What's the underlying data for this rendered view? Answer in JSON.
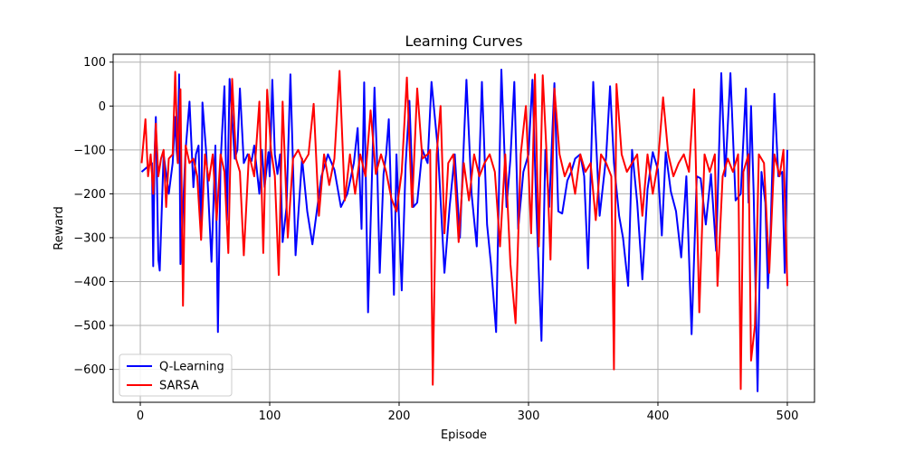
{
  "chart_data": {
    "type": "line",
    "title": "Learning Curves",
    "xlabel": "Episode",
    "ylabel": "Reward",
    "xlim": [
      -21,
      521
    ],
    "ylim": [
      -675,
      118
    ],
    "x_ticks": [
      0,
      100,
      200,
      300,
      400,
      500
    ],
    "y_ticks": [
      100,
      0,
      -100,
      -200,
      -300,
      -400,
      -500,
      -600
    ],
    "grid": true,
    "legend": "lower-left",
    "series": [
      {
        "name": "Q-Learning",
        "color": "#0000ff",
        "x": [
          1,
          9,
          10,
          11,
          12,
          14,
          15,
          18,
          22,
          25,
          27,
          28,
          29,
          30,
          31,
          35,
          38,
          41,
          43,
          45,
          47,
          48,
          51,
          55,
          58,
          60,
          62,
          65,
          67,
          69,
          73,
          75,
          77,
          80,
          83,
          86,
          88,
          92,
          94,
          96,
          99,
          100,
          102,
          104,
          106,
          108,
          110,
          113,
          116,
          120,
          125,
          129,
          133,
          140,
          145,
          150,
          155,
          160,
          165,
          168,
          171,
          173,
          176,
          179,
          181,
          183,
          185,
          188,
          190,
          192,
          196,
          198,
          202,
          205,
          208,
          211,
          214,
          218,
          222,
          225,
          230,
          235,
          239,
          243,
          247,
          252,
          256,
          260,
          264,
          268,
          271,
          275,
          279,
          283,
          286,
          289,
          292,
          296,
          300,
          303,
          306,
          310,
          313,
          316,
          320,
          323,
          326,
          330,
          333,
          336,
          340,
          343,
          346,
          350,
          355,
          360,
          363,
          366,
          370,
          373,
          377,
          380,
          384,
          388,
          392,
          396,
          400,
          403,
          406,
          410,
          414,
          418,
          422,
          426,
          430,
          433,
          437,
          441,
          445,
          449,
          452,
          456,
          460,
          464,
          468,
          470,
          472,
          474,
          477,
          480,
          483,
          485,
          487,
          490,
          493,
          496,
          498,
          500
        ],
        "y": [
          -150,
          -130,
          -365,
          -110,
          -25,
          -350,
          -375,
          -110,
          -200,
          -130,
          -25,
          -100,
          -130,
          72,
          -360,
          -100,
          10,
          -185,
          -110,
          -90,
          -300,
          8,
          -110,
          -355,
          -90,
          -515,
          -130,
          45,
          -260,
          62,
          -120,
          -100,
          40,
          -130,
          -110,
          -125,
          -90,
          -200,
          -100,
          -185,
          -105,
          -160,
          60,
          -110,
          -155,
          -110,
          -310,
          -230,
          72,
          -340,
          -120,
          -240,
          -315,
          -160,
          -110,
          -145,
          -230,
          -200,
          -130,
          -50,
          -280,
          54,
          -470,
          -160,
          42,
          -130,
          -380,
          -155,
          -110,
          -30,
          -430,
          -110,
          -420,
          -135,
          12,
          -230,
          -220,
          -100,
          -130,
          55,
          -100,
          -380,
          -230,
          -110,
          -300,
          60,
          -200,
          -320,
          55,
          -270,
          -360,
          -515,
          83,
          -230,
          -120,
          55,
          -280,
          -150,
          -110,
          60,
          -230,
          -535,
          -100,
          -230,
          52,
          -240,
          -245,
          -170,
          -150,
          -120,
          -110,
          -160,
          -370,
          55,
          -250,
          -115,
          45,
          -130,
          -250,
          -300,
          -410,
          -100,
          -220,
          -395,
          -190,
          -105,
          -145,
          -295,
          -105,
          -195,
          -240,
          -345,
          -160,
          -520,
          -160,
          -165,
          -270,
          -155,
          -330,
          75,
          -160,
          75,
          -215,
          -200,
          40,
          -220,
          0,
          -200,
          -650,
          -150,
          -220,
          -415,
          -290,
          28,
          -160,
          -150,
          -380,
          -100
        ],
        "linewidth": 2
      },
      {
        "name": "SARSA",
        "color": "#ff0000",
        "x": [
          1,
          4,
          6,
          8,
          10,
          12,
          14,
          16,
          18,
          20,
          22,
          25,
          27,
          29,
          31,
          33,
          35,
          38,
          41,
          44,
          47,
          50,
          53,
          56,
          59,
          62,
          65,
          68,
          71,
          74,
          77,
          80,
          84,
          88,
          92,
          95,
          98,
          101,
          104,
          107,
          110,
          114,
          118,
          122,
          126,
          130,
          134,
          138,
          142,
          146,
          150,
          154,
          158,
          162,
          166,
          170,
          174,
          178,
          182,
          186,
          190,
          194,
          198,
          202,
          206,
          210,
          214,
          218,
          222,
          224,
          226,
          229,
          232,
          235,
          238,
          242,
          246,
          250,
          254,
          258,
          262,
          266,
          270,
          274,
          278,
          282,
          286,
          290,
          294,
          298,
          302,
          305,
          308,
          311,
          314,
          317,
          320,
          324,
          328,
          332,
          336,
          340,
          344,
          348,
          352,
          356,
          360,
          364,
          366,
          368,
          372,
          376,
          380,
          384,
          388,
          392,
          396,
          400,
          404,
          408,
          412,
          416,
          420,
          424,
          428,
          432,
          436,
          440,
          444,
          446,
          450,
          454,
          458,
          462,
          464,
          466,
          470,
          472,
          475,
          478,
          482,
          486,
          490,
          494,
          497,
          500
        ],
        "y": [
          -130,
          -30,
          -160,
          -110,
          -200,
          -40,
          -160,
          -120,
          -100,
          -230,
          -120,
          -110,
          78,
          -130,
          38,
          -455,
          -90,
          -130,
          -120,
          -160,
          -305,
          -110,
          -170,
          -110,
          -260,
          -110,
          -150,
          -335,
          62,
          -120,
          -150,
          -340,
          -110,
          -160,
          10,
          -335,
          37,
          -100,
          -160,
          -385,
          10,
          -300,
          -120,
          -100,
          -130,
          -110,
          5,
          -250,
          -110,
          -180,
          -120,
          80,
          -215,
          -110,
          -200,
          -110,
          -160,
          -10,
          -155,
          -110,
          -150,
          -210,
          -240,
          -150,
          65,
          -230,
          40,
          -120,
          -110,
          -100,
          -635,
          -110,
          0,
          -290,
          -130,
          -110,
          -310,
          -130,
          -215,
          -110,
          -160,
          -130,
          -110,
          -150,
          -320,
          -110,
          -360,
          -495,
          -110,
          0,
          -290,
          72,
          -320,
          70,
          -110,
          -350,
          40,
          -110,
          -160,
          -130,
          -200,
          -110,
          -150,
          -130,
          -260,
          -110,
          -130,
          -160,
          -600,
          50,
          -110,
          -150,
          -130,
          -110,
          -250,
          -110,
          -200,
          -130,
          20,
          -110,
          -160,
          -130,
          -110,
          -150,
          38,
          -470,
          -110,
          -150,
          -110,
          -410,
          -160,
          -120,
          -150,
          -110,
          -645,
          -150,
          -110,
          -580,
          -500,
          -110,
          -130,
          -380,
          -110,
          -160,
          -100,
          -410
        ],
        "linewidth": 2
      }
    ]
  }
}
